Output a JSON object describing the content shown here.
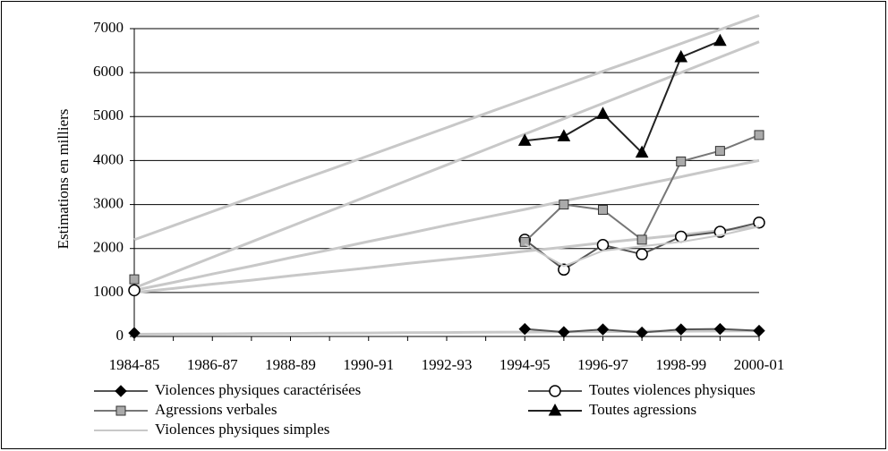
{
  "chart_data": {
    "type": "line",
    "y_label": "Estimations en milliers",
    "categories": [
      "1984-85",
      null,
      "1986-87",
      null,
      "1988-89",
      null,
      "1990-91",
      null,
      "1992-93",
      null,
      "1994-95",
      null,
      "1996-97",
      null,
      "1998-99",
      null,
      "2000-01"
    ],
    "ylim": [
      0,
      7000
    ],
    "yticks": [
      0,
      1000,
      2000,
      3000,
      4000,
      5000,
      6000,
      7000
    ],
    "grid": true,
    "legend": "bottom",
    "trend_lines": [
      {
        "color": "#c8c8c8",
        "values": [
          2200,
          2520,
          2840,
          3160,
          3480,
          3790,
          4110,
          4430,
          4750,
          5070,
          5390,
          5710,
          6030,
          6340,
          6660,
          6980,
          7300
        ]
      },
      {
        "color": "#c8c8c8",
        "values": [
          1100,
          1450,
          1800,
          2150,
          2500,
          2850,
          3200,
          3550,
          3900,
          4250,
          4600,
          4950,
          5300,
          5650,
          6000,
          6350,
          6700
        ]
      },
      {
        "color": "#c8c8c8",
        "values": [
          1050,
          1230,
          1420,
          1600,
          1790,
          1970,
          2160,
          2340,
          2530,
          2710,
          2890,
          3080,
          3260,
          3450,
          3630,
          3820,
          4000
        ]
      },
      {
        "color": "#c8c8c8",
        "values": [
          1000,
          1090,
          1190,
          1280,
          1380,
          1470,
          1560,
          1660,
          1750,
          1840,
          1940,
          2030,
          2130,
          2220,
          2310,
          2410,
          2500
        ]
      },
      {
        "color": "#c8c8c8",
        "values": [
          50,
          55,
          60,
          65,
          70,
          75,
          80,
          85,
          90,
          95,
          100,
          105,
          110,
          115,
          120,
          125,
          130
        ]
      }
    ],
    "series": [
      {
        "name": "Violences physiques caractérisées",
        "color": "#555555",
        "marker": "diamond",
        "marker_fill": "#000000",
        "values": [
          80,
          null,
          null,
          null,
          null,
          null,
          null,
          null,
          null,
          null,
          170,
          100,
          160,
          90,
          160,
          170,
          130
        ]
      },
      {
        "name": "Toutes violences physiques",
        "color": "#555555",
        "marker": "circle",
        "marker_fill": "#ffffff",
        "values": [
          1050,
          null,
          null,
          null,
          null,
          null,
          null,
          null,
          null,
          null,
          2200,
          1520,
          2080,
          1870,
          2270,
          2380,
          2590
        ]
      },
      {
        "name": "Agressions verbales",
        "color": "#777777",
        "marker": "square",
        "marker_fill": "#aaaaaa",
        "values": [
          1300,
          null,
          null,
          null,
          null,
          null,
          null,
          null,
          null,
          null,
          2150,
          3000,
          2880,
          2200,
          3980,
          4220,
          4580
        ]
      },
      {
        "name": "Toutes agressions",
        "color": "#222222",
        "marker": "triangle",
        "marker_fill": "#000000",
        "values": [
          null,
          null,
          null,
          null,
          null,
          null,
          null,
          null,
          null,
          null,
          4450,
          4550,
          5060,
          4180,
          6350,
          6720,
          null
        ]
      },
      {
        "name": "Violences physiques simples",
        "color": "#c8c8c8",
        "marker": null,
        "marker_fill": null,
        "values": [
          null,
          null,
          null,
          null,
          null,
          null,
          null,
          null,
          null,
          null,
          2100,
          1600,
          1950,
          2050,
          2150,
          2300,
          2500
        ]
      }
    ]
  }
}
